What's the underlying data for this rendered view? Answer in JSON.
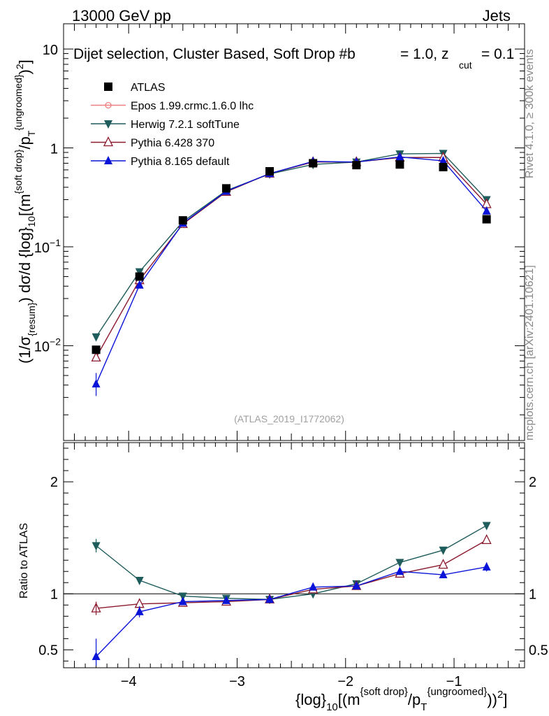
{
  "header": {
    "left": "13000 GeV pp",
    "right": "Jets"
  },
  "side_labels": {
    "rivet": "Rivet 4.1.0, ≥ 300k events",
    "mcplots": "mcplots.cern.ch [arXiv:2401.10621]"
  },
  "chart_data": [
    {
      "type": "line",
      "title": "Dijet selection, Cluster Based, Soft Drop #b",
      "title_suffix": "= 1.0, z",
      "title_sub": "cut",
      "title_end": "= 0.1",
      "analysis_tag": "(ATLAS_2019_I1772062)",
      "ylabel": "(1/σ{resum}) dσ/d {log}10[(m{soft drop}/pT{ungroomed})2]",
      "yscale": "log",
      "ylim": [
        0.0011,
        18
      ],
      "xlim": [
        -4.6,
        -0.35
      ],
      "y_ticks": [
        {
          "value": 10,
          "label": "10"
        },
        {
          "value": 1,
          "label": "1"
        },
        {
          "value": 0.1,
          "label": "10",
          "exp": "−1"
        },
        {
          "value": 0.01,
          "label": "10",
          "exp": "−2"
        }
      ],
      "x": [
        -4.3,
        -3.9,
        -3.5,
        -3.1,
        -2.7,
        -2.3,
        -1.9,
        -1.5,
        -1.1,
        -0.7
      ],
      "legend": {
        "placement": "top-left"
      },
      "series": [
        {
          "name": "ATLAS",
          "marker": "square",
          "color": "#000000",
          "values": [
            0.0091,
            0.05,
            0.185,
            0.39,
            0.58,
            0.7,
            0.67,
            0.68,
            0.64,
            0.19
          ]
        },
        {
          "name": "Epos 1.99.crmc.1.6.0 lhc",
          "marker": "open-circle",
          "color": "#f08080",
          "values": [
            null,
            null,
            null,
            null,
            null,
            null,
            null,
            null,
            null,
            null
          ]
        },
        {
          "name": "Herwig 7.2.1 softTune",
          "marker": "triangle-down",
          "color": "#1f5c5c",
          "values": [
            0.0123,
            0.056,
            0.18,
            0.37,
            0.545,
            0.68,
            0.72,
            0.87,
            0.88,
            0.3
          ]
        },
        {
          "name": "Pythia 6.428 370",
          "marker": "open-triangle",
          "color": "#8b1a2e",
          "values": [
            0.0076,
            0.046,
            0.17,
            0.36,
            0.55,
            0.72,
            0.72,
            0.8,
            0.8,
            0.27
          ]
        },
        {
          "name": "Pythia 8.165 default",
          "marker": "triangle",
          "color": "#0a14d8",
          "values": [
            0.0041,
            0.041,
            0.173,
            0.365,
            0.55,
            0.73,
            0.72,
            0.81,
            0.74,
            0.23
          ]
        }
      ]
    },
    {
      "type": "line",
      "ylabel": "Ratio to ATLAS",
      "xlabel": "{log}10[(m{soft drop}/pT{ungroomed})2]",
      "ylim": [
        0.34,
        2.35
      ],
      "xlim": [
        -4.6,
        -0.35
      ],
      "y_ticks": [
        {
          "value": 2,
          "label": "2"
        },
        {
          "value": 1,
          "label": "1"
        },
        {
          "value": 0.5,
          "label": "0.5"
        }
      ],
      "x_ticks": [
        {
          "value": -4,
          "label": "−4"
        },
        {
          "value": -3,
          "label": "−3"
        },
        {
          "value": -2,
          "label": "−2"
        },
        {
          "value": -1,
          "label": "−1"
        }
      ],
      "x": [
        -4.3,
        -3.9,
        -3.5,
        -3.1,
        -2.7,
        -2.3,
        -1.9,
        -1.5,
        -1.1,
        -0.7
      ],
      "series": [
        {
          "name": "Herwig 7.2.1 softTune",
          "color": "#1f5c5c",
          "values": [
            1.43,
            1.12,
            0.98,
            0.96,
            0.95,
            1.0,
            1.09,
            1.28,
            1.39,
            1.61
          ]
        },
        {
          "name": "Pythia 6.428 370",
          "color": "#8b1a2e",
          "values": [
            0.87,
            0.91,
            0.92,
            0.93,
            0.95,
            1.04,
            1.07,
            1.18,
            1.26,
            1.48
          ]
        },
        {
          "name": "Pythia 8.165 default",
          "color": "#0a14d8",
          "values": [
            0.44,
            0.84,
            0.93,
            0.94,
            0.95,
            1.06,
            1.07,
            1.2,
            1.17,
            1.24
          ]
        }
      ]
    }
  ]
}
